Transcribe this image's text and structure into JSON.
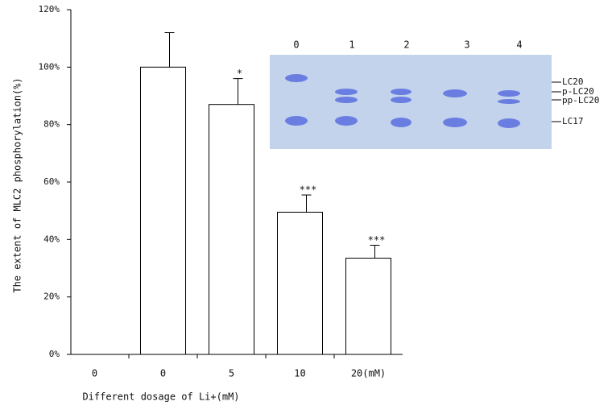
{
  "chart_data": {
    "type": "bar",
    "y_label": "The extent of MLC2 phosphorylation(%)",
    "x_label": "Different dosage of Li+(mM)",
    "categories": [
      "0",
      "0",
      "5",
      "10",
      "20(mM)"
    ],
    "values": [
      null,
      100,
      87,
      49.5,
      33.5
    ],
    "errors": [
      null,
      12,
      9,
      6,
      4.5
    ],
    "annotations": [
      null,
      null,
      "*",
      "***",
      "***"
    ],
    "color": "#ffffff",
    "ylim": [
      0,
      120
    ],
    "yticks": [
      {
        "value": 0,
        "label": "0%"
      },
      {
        "value": 20,
        "label": "20%"
      },
      {
        "value": 40,
        "label": "40%"
      },
      {
        "value": 60,
        "label": "60%"
      },
      {
        "value": 80,
        "label": "80%"
      },
      {
        "value": 100,
        "label": "100%"
      },
      {
        "value": 120,
        "label": "120%"
      }
    ]
  },
  "inset": {
    "lanes": [
      "0",
      "1",
      "2",
      "3",
      "4"
    ],
    "bands": [
      "LC20",
      "p-LC20",
      "pp-LC20",
      "LC17"
    ]
  }
}
